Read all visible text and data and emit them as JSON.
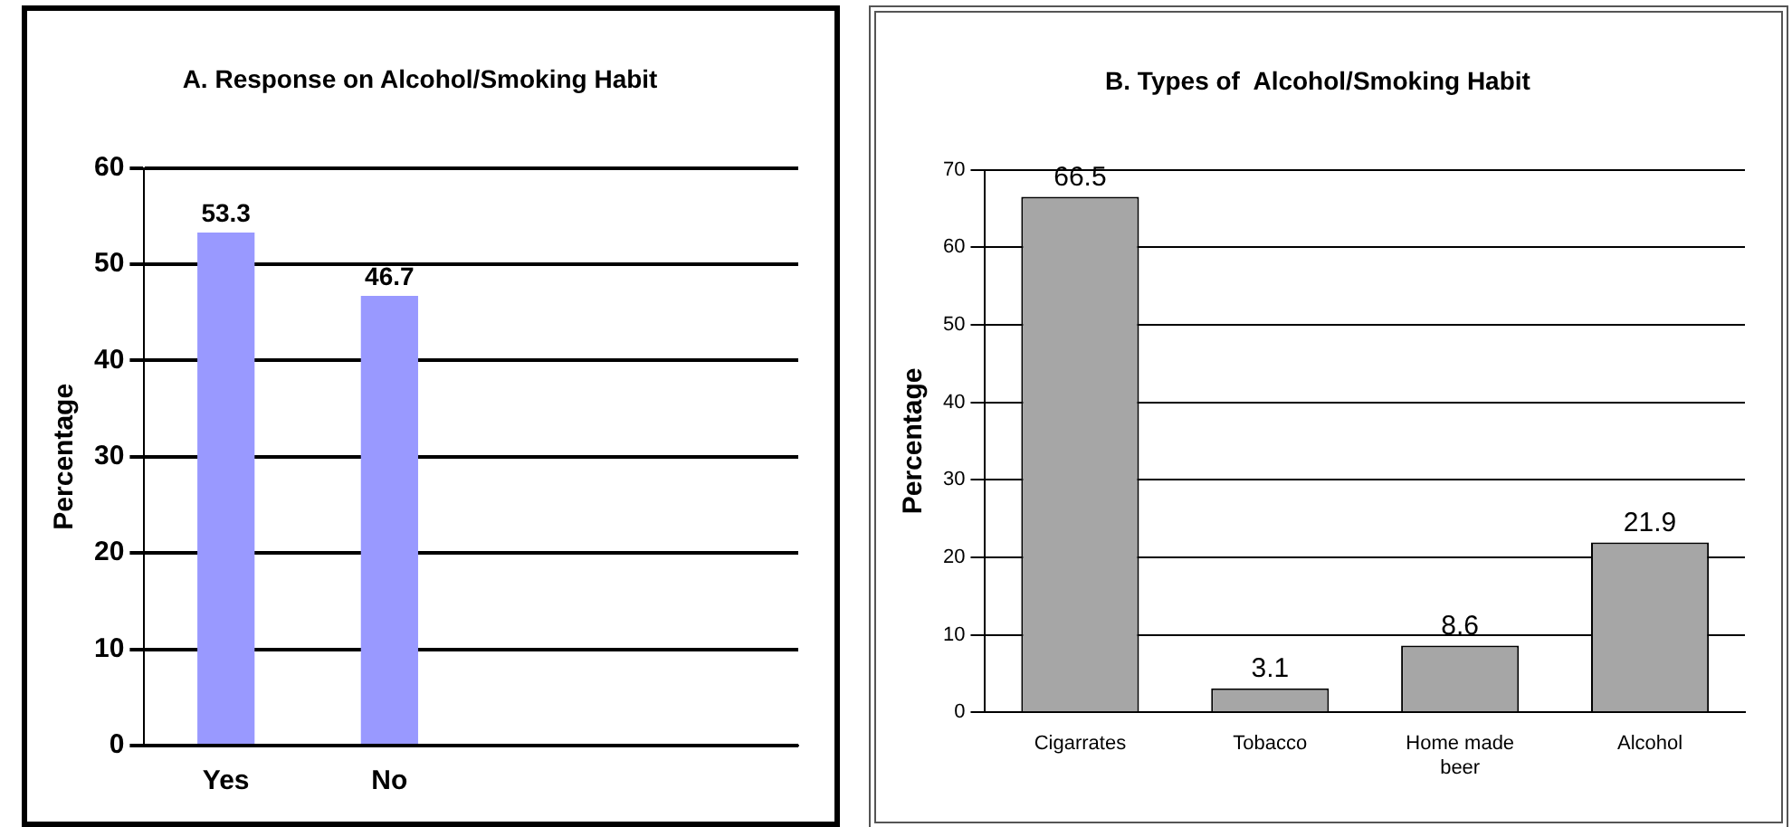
{
  "chart_data": [
    {
      "type": "bar",
      "title": "A. Response on Alcohol/Smoking Habit",
      "ylabel": "Percentage",
      "categories": [
        "Yes",
        "No",
        null,
        null
      ],
      "values": [
        53.3,
        46.7,
        null,
        null
      ],
      "color": "#9999ff",
      "ylim": [
        0,
        60
      ],
      "yticks": [
        0,
        10,
        20,
        30,
        40,
        50,
        60
      ],
      "grid": "y",
      "data_labels": true,
      "legend": false
    },
    {
      "type": "bar",
      "title": "B. Types of  Alcohol/Smoking Habit",
      "ylabel": "Percentage",
      "categories": [
        "Cigarrates",
        "Tobacco",
        "Home made beer",
        "Alcohol"
      ],
      "values": [
        66.5,
        3.1,
        8.6,
        21.9
      ],
      "color": "#a6a6a6",
      "ylim": [
        0,
        70
      ],
      "yticks": [
        0,
        10,
        20,
        30,
        40,
        50,
        60,
        70
      ],
      "grid": "y",
      "data_labels": true,
      "legend": false
    }
  ]
}
